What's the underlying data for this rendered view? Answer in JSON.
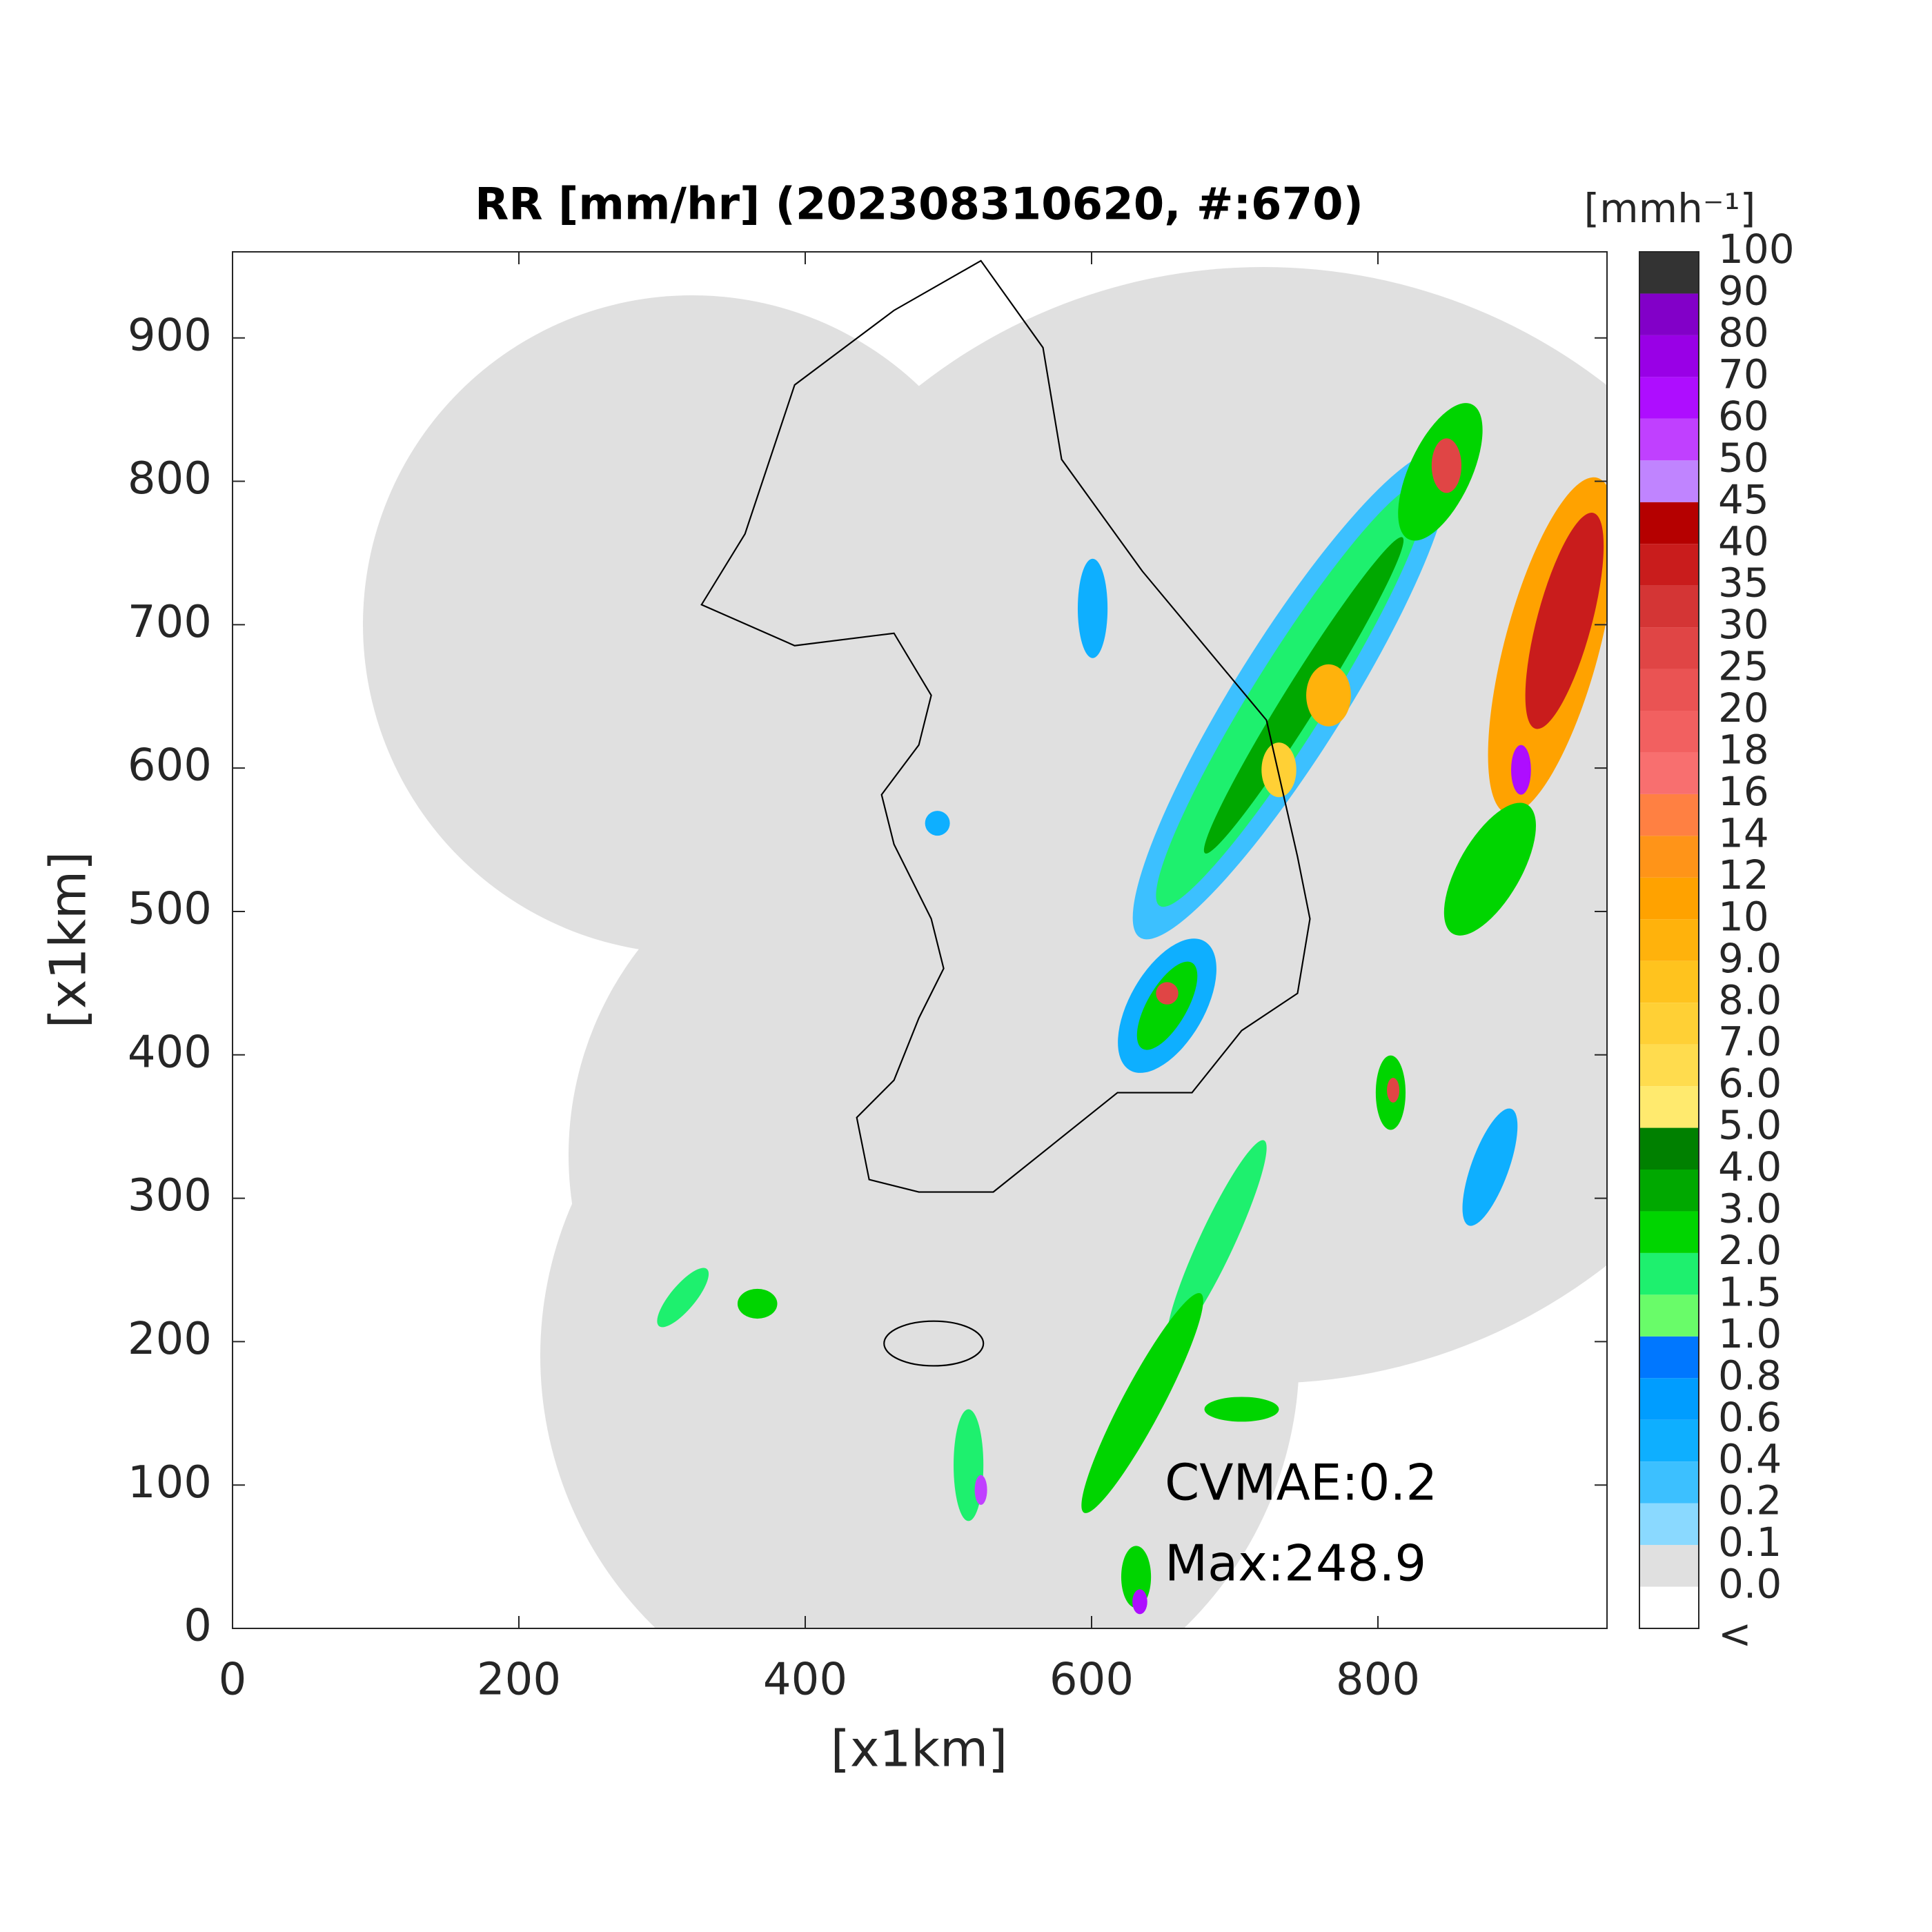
{
  "chart_data": {
    "type": "map",
    "title": "RR [mm/hr] (202308310620, #:670)",
    "xlabel": "[x1km]",
    "ylabel": "[x1km]",
    "xlim": [
      0,
      960
    ],
    "ylim": [
      0,
      960
    ],
    "xticks": [
      0,
      200,
      400,
      600,
      800
    ],
    "yticks": [
      0,
      100,
      200,
      300,
      400,
      500,
      600,
      700,
      800,
      900
    ],
    "annotations": [
      "CVMAE:0.2",
      "Max:248.9"
    ],
    "colorbar": {
      "label": "[mmh⁻¹]",
      "ticks": [
        "<",
        "0.0",
        "0.1",
        "0.2",
        "0.4",
        "0.6",
        "0.8",
        "1.0",
        "1.5",
        "2.0",
        "3.0",
        "4.0",
        "5.0",
        "6.0",
        "7.0",
        "8.0",
        "9.0",
        "10",
        "12",
        "14",
        "16",
        "18",
        "20",
        "25",
        "30",
        "35",
        "40",
        "45",
        "50",
        "60",
        "70",
        "80",
        "90",
        "100"
      ],
      "colors": [
        "#ffffff",
        "#e0e0e0",
        "#8ad9ff",
        "#3cc0ff",
        "#0eafff",
        "#009dff",
        "#0077ff",
        "#69fc69",
        "#1ef06e",
        "#00d500",
        "#00a800",
        "#008000",
        "#ffea6e",
        "#ffdc4e",
        "#ffd035",
        "#ffc31e",
        "#ffb20c",
        "#ffa200",
        "#ff9418",
        "#ff8042",
        "#f86f6f",
        "#f26060",
        "#ea5353",
        "#e04545",
        "#d43535",
        "#c91c1c",
        "#b50000",
        "#c084ff",
        "#c040ff",
        "#ae0dff",
        "#9900e6",
        "#8200c8",
        "#333333"
      ]
    }
  }
}
